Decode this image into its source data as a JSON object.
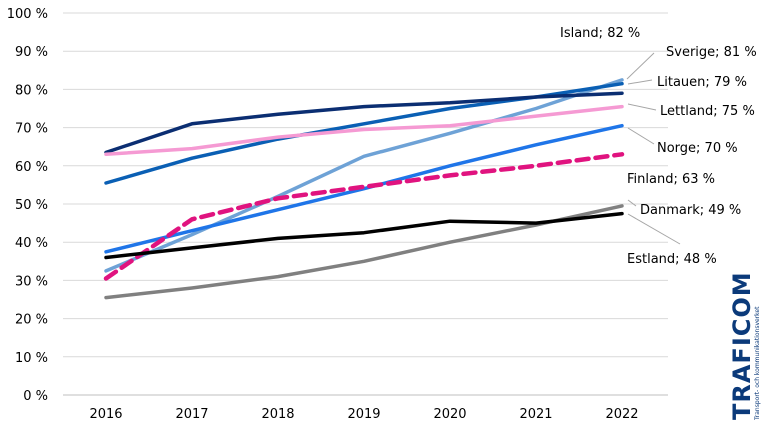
{
  "chart_data": {
    "type": "line",
    "title": "",
    "xlabel": "",
    "ylabel": "",
    "categories": [
      "2016",
      "2017",
      "2018",
      "2019",
      "2020",
      "2021",
      "2022"
    ],
    "y_ticks": [
      "0 %",
      "10 %",
      "20 %",
      "30 %",
      "40 %",
      "50 %",
      "60 %",
      "70 %",
      "80 %",
      "90 %",
      "100 %"
    ],
    "ylim": [
      0,
      100
    ],
    "grid": true,
    "series": [
      {
        "name": "Island",
        "label": "Island; 82 %",
        "color": "#6ea2d6",
        "dashed": false,
        "values": [
          32.5,
          42,
          52,
          62.5,
          68.5,
          75,
          82.5
        ]
      },
      {
        "name": "Sverige",
        "label": "Sverige; 81 %",
        "color": "#0a5fb4",
        "dashed": false,
        "values": [
          55.5,
          62,
          67,
          71,
          75,
          78,
          81.5
        ]
      },
      {
        "name": "Litauen",
        "label": "Litauen; 79 %",
        "color": "#0b2e72",
        "dashed": false,
        "values": [
          63.5,
          71,
          73.5,
          75.5,
          76.5,
          78,
          79
        ]
      },
      {
        "name": "Lettland",
        "label": "Lettland; 75 %",
        "color": "#f59ad3",
        "dashed": false,
        "values": [
          63,
          64.5,
          67.5,
          69.5,
          70.5,
          73,
          75.5
        ]
      },
      {
        "name": "Norge",
        "label": "Norge; 70 %",
        "color": "#1f75e8",
        "dashed": false,
        "values": [
          37.5,
          43,
          48.5,
          54,
          60,
          65.5,
          70.5
        ]
      },
      {
        "name": "Finland",
        "label": "Finland; 63 %",
        "color": "#e0137f",
        "dashed": true,
        "values": [
          30.5,
          46,
          51.5,
          54.5,
          57.5,
          60,
          63
        ]
      },
      {
        "name": "Danmark",
        "label": "Danmark; 49 %",
        "color": "#808080",
        "dashed": false,
        "values": [
          25.5,
          28,
          31,
          35,
          40,
          44.5,
          49.5
        ]
      },
      {
        "name": "Estland",
        "label": "Estland; 48 %",
        "color": "#000000",
        "dashed": false,
        "values": [
          36,
          38.5,
          41,
          42.5,
          45.5,
          45,
          47.5
        ]
      }
    ]
  },
  "logo": {
    "text": "TRAFICOM",
    "subtitle": "Transport- och kommunikationsverket"
  }
}
